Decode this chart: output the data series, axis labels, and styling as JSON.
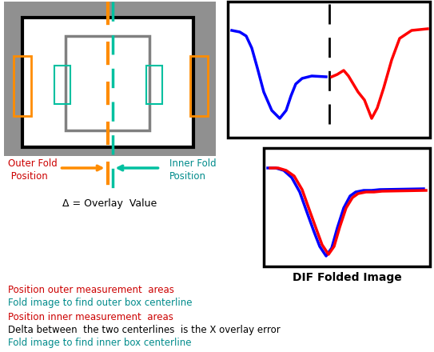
{
  "bg_color": "#909090",
  "white": "#ffffff",
  "black": "#000000",
  "orange": "#FF8C00",
  "teal": "#00C0A0",
  "blue": "#0000CC",
  "red_line": "#CC0000",
  "label_red": "#CC0000",
  "label_teal": "#008B8B",
  "label_black": "#000000",
  "figsize": [
    5.43,
    4.4
  ],
  "dpi": 100,
  "texts": {
    "outer_fold": "Outer Fold\n Position",
    "inner_fold": "Inner Fold\nPosition",
    "delta": "Δ = Overlay  Value",
    "dif_label": "DIF Folded Image",
    "step1": "Position outer measurement  areas",
    "step2": "Fold image to find outer box centerline",
    "step3": "Position inner measurement  areas",
    "step4": "Delta between  the two centerlines  is the X overlay error",
    "step5": "Fold image to find inner box centerline"
  }
}
